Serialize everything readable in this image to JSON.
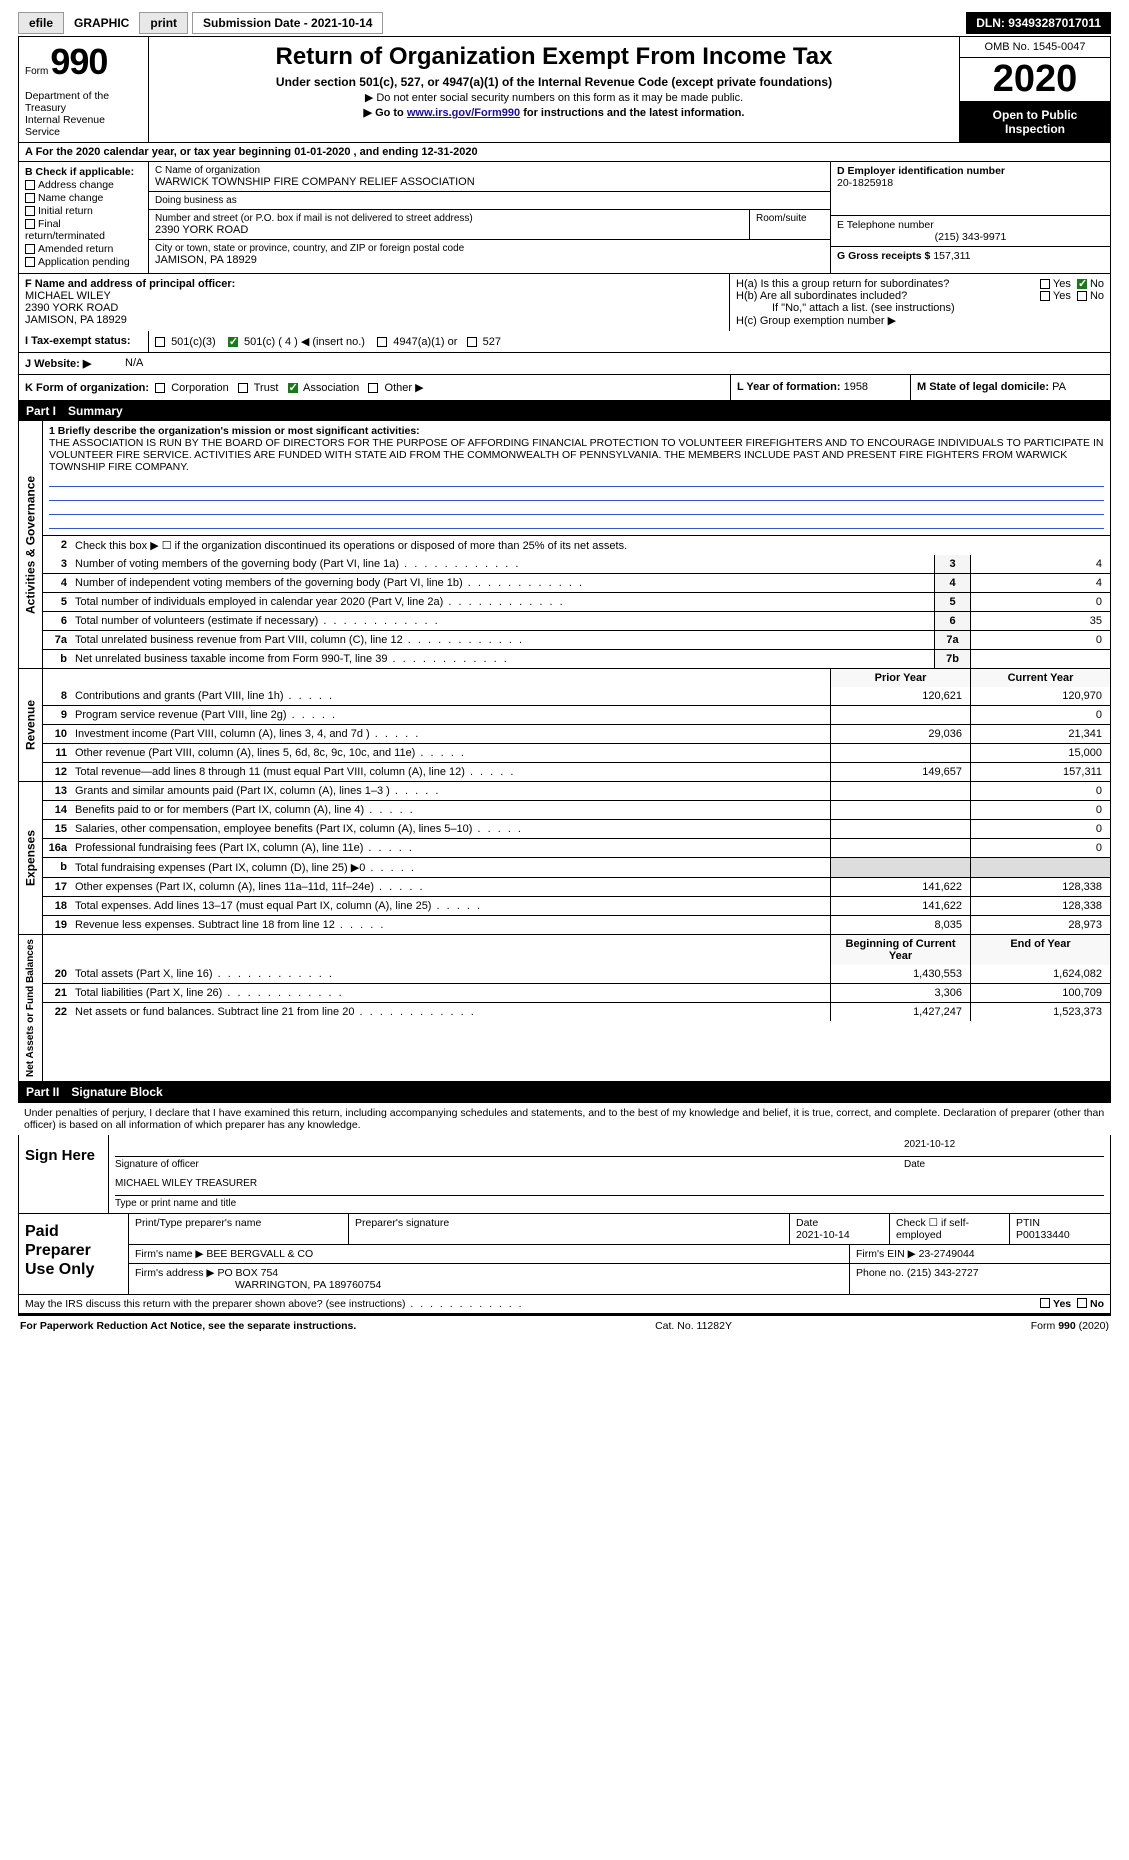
{
  "toolbar": {
    "efile": "efile",
    "graphic": "GRAPHIC",
    "print": "print",
    "submission": "Submission Date - 2021-10-14",
    "dln": "DLN: 93493287017011"
  },
  "header": {
    "form_label": "Form",
    "form_number": "990",
    "title": "Return of Organization Exempt From Income Tax",
    "subtitle": "Under section 501(c), 527, or 4947(a)(1) of the Internal Revenue Code (except private foundations)",
    "note1": "▶ Do not enter social security numbers on this form as it may be made public.",
    "note2_pre": "▶ Go to ",
    "note2_link": "www.irs.gov/Form990",
    "note2_post": " for instructions and the latest information.",
    "omb": "OMB No. 1545-0047",
    "year": "2020",
    "open_public": "Open to Public Inspection",
    "dept": "Department of the Treasury",
    "irs": "Internal Revenue Service"
  },
  "sectionA": {
    "label": "A For the 2020 calendar year, or tax year beginning 01-01-2020   , and ending 12-31-2020"
  },
  "sectionB": {
    "title": "B Check if applicable:",
    "opts": [
      "Address change",
      "Name change",
      "Initial return",
      "Final return/terminated",
      "Amended return",
      "Application pending"
    ],
    "g_marker": "G",
    "b_marker": "B"
  },
  "sectionC": {
    "name_label": "C Name of organization",
    "name": "WARWICK TOWNSHIP FIRE COMPANY RELIEF ASSOCIATION",
    "dba_label": "Doing business as",
    "dba": "",
    "street_label": "Number and street (or P.O. box if mail is not delivered to street address)",
    "room_label": "Room/suite",
    "street": "2390 YORK ROAD",
    "city_label": "City or town, state or province, country, and ZIP or foreign postal code",
    "city": "JAMISON, PA  18929"
  },
  "sectionD": {
    "label": "D Employer identification number",
    "value": "20-1825918"
  },
  "sectionE": {
    "label": "E Telephone number",
    "value": "(215) 343-9971"
  },
  "sectionG": {
    "label": "G Gross receipts $",
    "value": "157,311"
  },
  "sectionF": {
    "label": "F  Name and address of principal officer:",
    "name": "MICHAEL WILEY",
    "street": "2390 YORK ROAD",
    "city": "JAMISON, PA  18929"
  },
  "sectionH": {
    "ha": "H(a)  Is this a group return for subordinates?",
    "ha_ans": "No",
    "hb": "H(b)  Are all subordinates included?",
    "hb_note": "If \"No,\" attach a list. (see instructions)",
    "hc": "H(c)  Group exemption number ▶"
  },
  "sectionI": {
    "label": "I  Tax-exempt status:",
    "o1": "501(c)(3)",
    "o2": "501(c) ( 4 ) ◀ (insert no.)",
    "o3": "4947(a)(1) or",
    "o4": "527"
  },
  "sectionJ": {
    "label": "J  Website: ▶",
    "value": "N/A"
  },
  "sectionK": {
    "label": "K Form of organization:",
    "opts": [
      "Corporation",
      "Trust",
      "Association",
      "Other ▶"
    ]
  },
  "sectionL": {
    "label": "L Year of formation:",
    "value": "1958"
  },
  "sectionM": {
    "label": "M State of legal domicile:",
    "value": "PA"
  },
  "part1": {
    "num": "Part I",
    "title": "Summary",
    "l1_label": "1  Briefly describe the organization's mission or most significant activities:",
    "l1_text": "THE ASSOCIATION IS RUN BY THE BOARD OF DIRECTORS FOR THE PURPOSE OF AFFORDING FINANCIAL PROTECTION TO VOLUNTEER FIREFIGHTERS AND TO ENCOURAGE INDIVIDUALS TO PARTICIPATE IN VOLUNTEER FIRE SERVICE. ACTIVITIES ARE FUNDED WITH STATE AID FROM THE COMMONWEALTH OF PENNSYLVANIA. THE MEMBERS INCLUDE PAST AND PRESENT FIRE FIGHTERS FROM WARWICK TOWNSHIP FIRE COMPANY.",
    "l2": "Check this box ▶ ☐  if the organization discontinued its operations or disposed of more than 25% of its net assets.",
    "rows_gov": [
      {
        "n": "3",
        "t": "Number of voting members of the governing body (Part VI, line 1a)",
        "k": "3",
        "v": "4"
      },
      {
        "n": "4",
        "t": "Number of independent voting members of the governing body (Part VI, line 1b)",
        "k": "4",
        "v": "4"
      },
      {
        "n": "5",
        "t": "Total number of individuals employed in calendar year 2020 (Part V, line 2a)",
        "k": "5",
        "v": "0"
      },
      {
        "n": "6",
        "t": "Total number of volunteers (estimate if necessary)",
        "k": "6",
        "v": "35"
      },
      {
        "n": "7a",
        "t": "Total unrelated business revenue from Part VIII, column (C), line 12",
        "k": "7a",
        "v": "0"
      },
      {
        "n": "b",
        "t": "Net unrelated business taxable income from Form 990-T, line 39",
        "k": "7b",
        "v": ""
      }
    ],
    "col_prior": "Prior Year",
    "col_current": "Current Year",
    "rows_rev": [
      {
        "n": "8",
        "t": "Contributions and grants (Part VIII, line 1h)",
        "p": "120,621",
        "c": "120,970"
      },
      {
        "n": "9",
        "t": "Program service revenue (Part VIII, line 2g)",
        "p": "",
        "c": "0"
      },
      {
        "n": "10",
        "t": "Investment income (Part VIII, column (A), lines 3, 4, and 7d )",
        "p": "29,036",
        "c": "21,341"
      },
      {
        "n": "11",
        "t": "Other revenue (Part VIII, column (A), lines 5, 6d, 8c, 9c, 10c, and 11e)",
        "p": "",
        "c": "15,000"
      },
      {
        "n": "12",
        "t": "Total revenue—add lines 8 through 11 (must equal Part VIII, column (A), line 12)",
        "p": "149,657",
        "c": "157,311"
      }
    ],
    "rows_exp": [
      {
        "n": "13",
        "t": "Grants and similar amounts paid (Part IX, column (A), lines 1–3 )",
        "p": "",
        "c": "0"
      },
      {
        "n": "14",
        "t": "Benefits paid to or for members (Part IX, column (A), line 4)",
        "p": "",
        "c": "0"
      },
      {
        "n": "15",
        "t": "Salaries, other compensation, employee benefits (Part IX, column (A), lines 5–10)",
        "p": "",
        "c": "0"
      },
      {
        "n": "16a",
        "t": "Professional fundraising fees (Part IX, column (A), line 11e)",
        "p": "",
        "c": "0"
      },
      {
        "n": "b",
        "t": "Total fundraising expenses (Part IX, column (D), line 25) ▶0",
        "p": "—",
        "c": "—"
      },
      {
        "n": "17",
        "t": "Other expenses (Part IX, column (A), lines 11a–11d, 11f–24e)",
        "p": "141,622",
        "c": "128,338"
      },
      {
        "n": "18",
        "t": "Total expenses. Add lines 13–17 (must equal Part IX, column (A), line 25)",
        "p": "141,622",
        "c": "128,338"
      },
      {
        "n": "19",
        "t": "Revenue less expenses. Subtract line 18 from line 12",
        "p": "8,035",
        "c": "28,973"
      }
    ],
    "col_beg": "Beginning of Current Year",
    "col_end": "End of Year",
    "rows_net": [
      {
        "n": "20",
        "t": "Total assets (Part X, line 16)",
        "p": "1,430,553",
        "c": "1,624,082"
      },
      {
        "n": "21",
        "t": "Total liabilities (Part X, line 26)",
        "p": "3,306",
        "c": "100,709"
      },
      {
        "n": "22",
        "t": "Net assets or fund balances. Subtract line 21 from line 20",
        "p": "1,427,247",
        "c": "1,523,373"
      }
    ],
    "vert_gov": "Activities & Governance",
    "vert_rev": "Revenue",
    "vert_exp": "Expenses",
    "vert_net": "Net Assets or Fund Balances"
  },
  "part2": {
    "num": "Part II",
    "title": "Signature Block",
    "intro": "Under penalties of perjury, I declare that I have examined this return, including accompanying schedules and statements, and to the best of my knowledge and belief, it is true, correct, and complete. Declaration of preparer (other than officer) is based on all information of which preparer has any knowledge.",
    "sign_here": "Sign Here",
    "sig_date": "2021-10-12",
    "sig_officer_label": "Signature of officer",
    "date_label": "Date",
    "sig_name": "MICHAEL WILEY  TREASURER",
    "sig_type_label": "Type or print name and title",
    "paid_title": "Paid Preparer Use Only",
    "pp_name_label": "Print/Type preparer's name",
    "pp_sig_label": "Preparer's signature",
    "pp_date_label": "Date",
    "pp_date": "2021-10-14",
    "pp_check_label": "Check ☐ if self-employed",
    "pp_ptin_label": "PTIN",
    "pp_ptin": "P00133440",
    "firm_name_label": "Firm's name    ▶",
    "firm_name": "BEE BERGVALL & CO",
    "firm_ein_label": "Firm's EIN ▶",
    "firm_ein": "23-2749044",
    "firm_addr_label": "Firm's address ▶",
    "firm_addr1": "PO BOX 754",
    "firm_addr2": "WARRINGTON, PA  189760754",
    "firm_phone_label": "Phone no.",
    "firm_phone": "(215) 343-2727",
    "discuss": "May the IRS discuss this return with the preparer shown above? (see instructions)",
    "yes": "Yes",
    "no": "No"
  },
  "footer": {
    "pra": "For Paperwork Reduction Act Notice, see the separate instructions.",
    "cat": "Cat. No. 11282Y",
    "form": "Form 990 (2020)"
  },
  "colors": {
    "black": "#000000",
    "link": "#1a0dab",
    "rule": "#3355cc"
  }
}
